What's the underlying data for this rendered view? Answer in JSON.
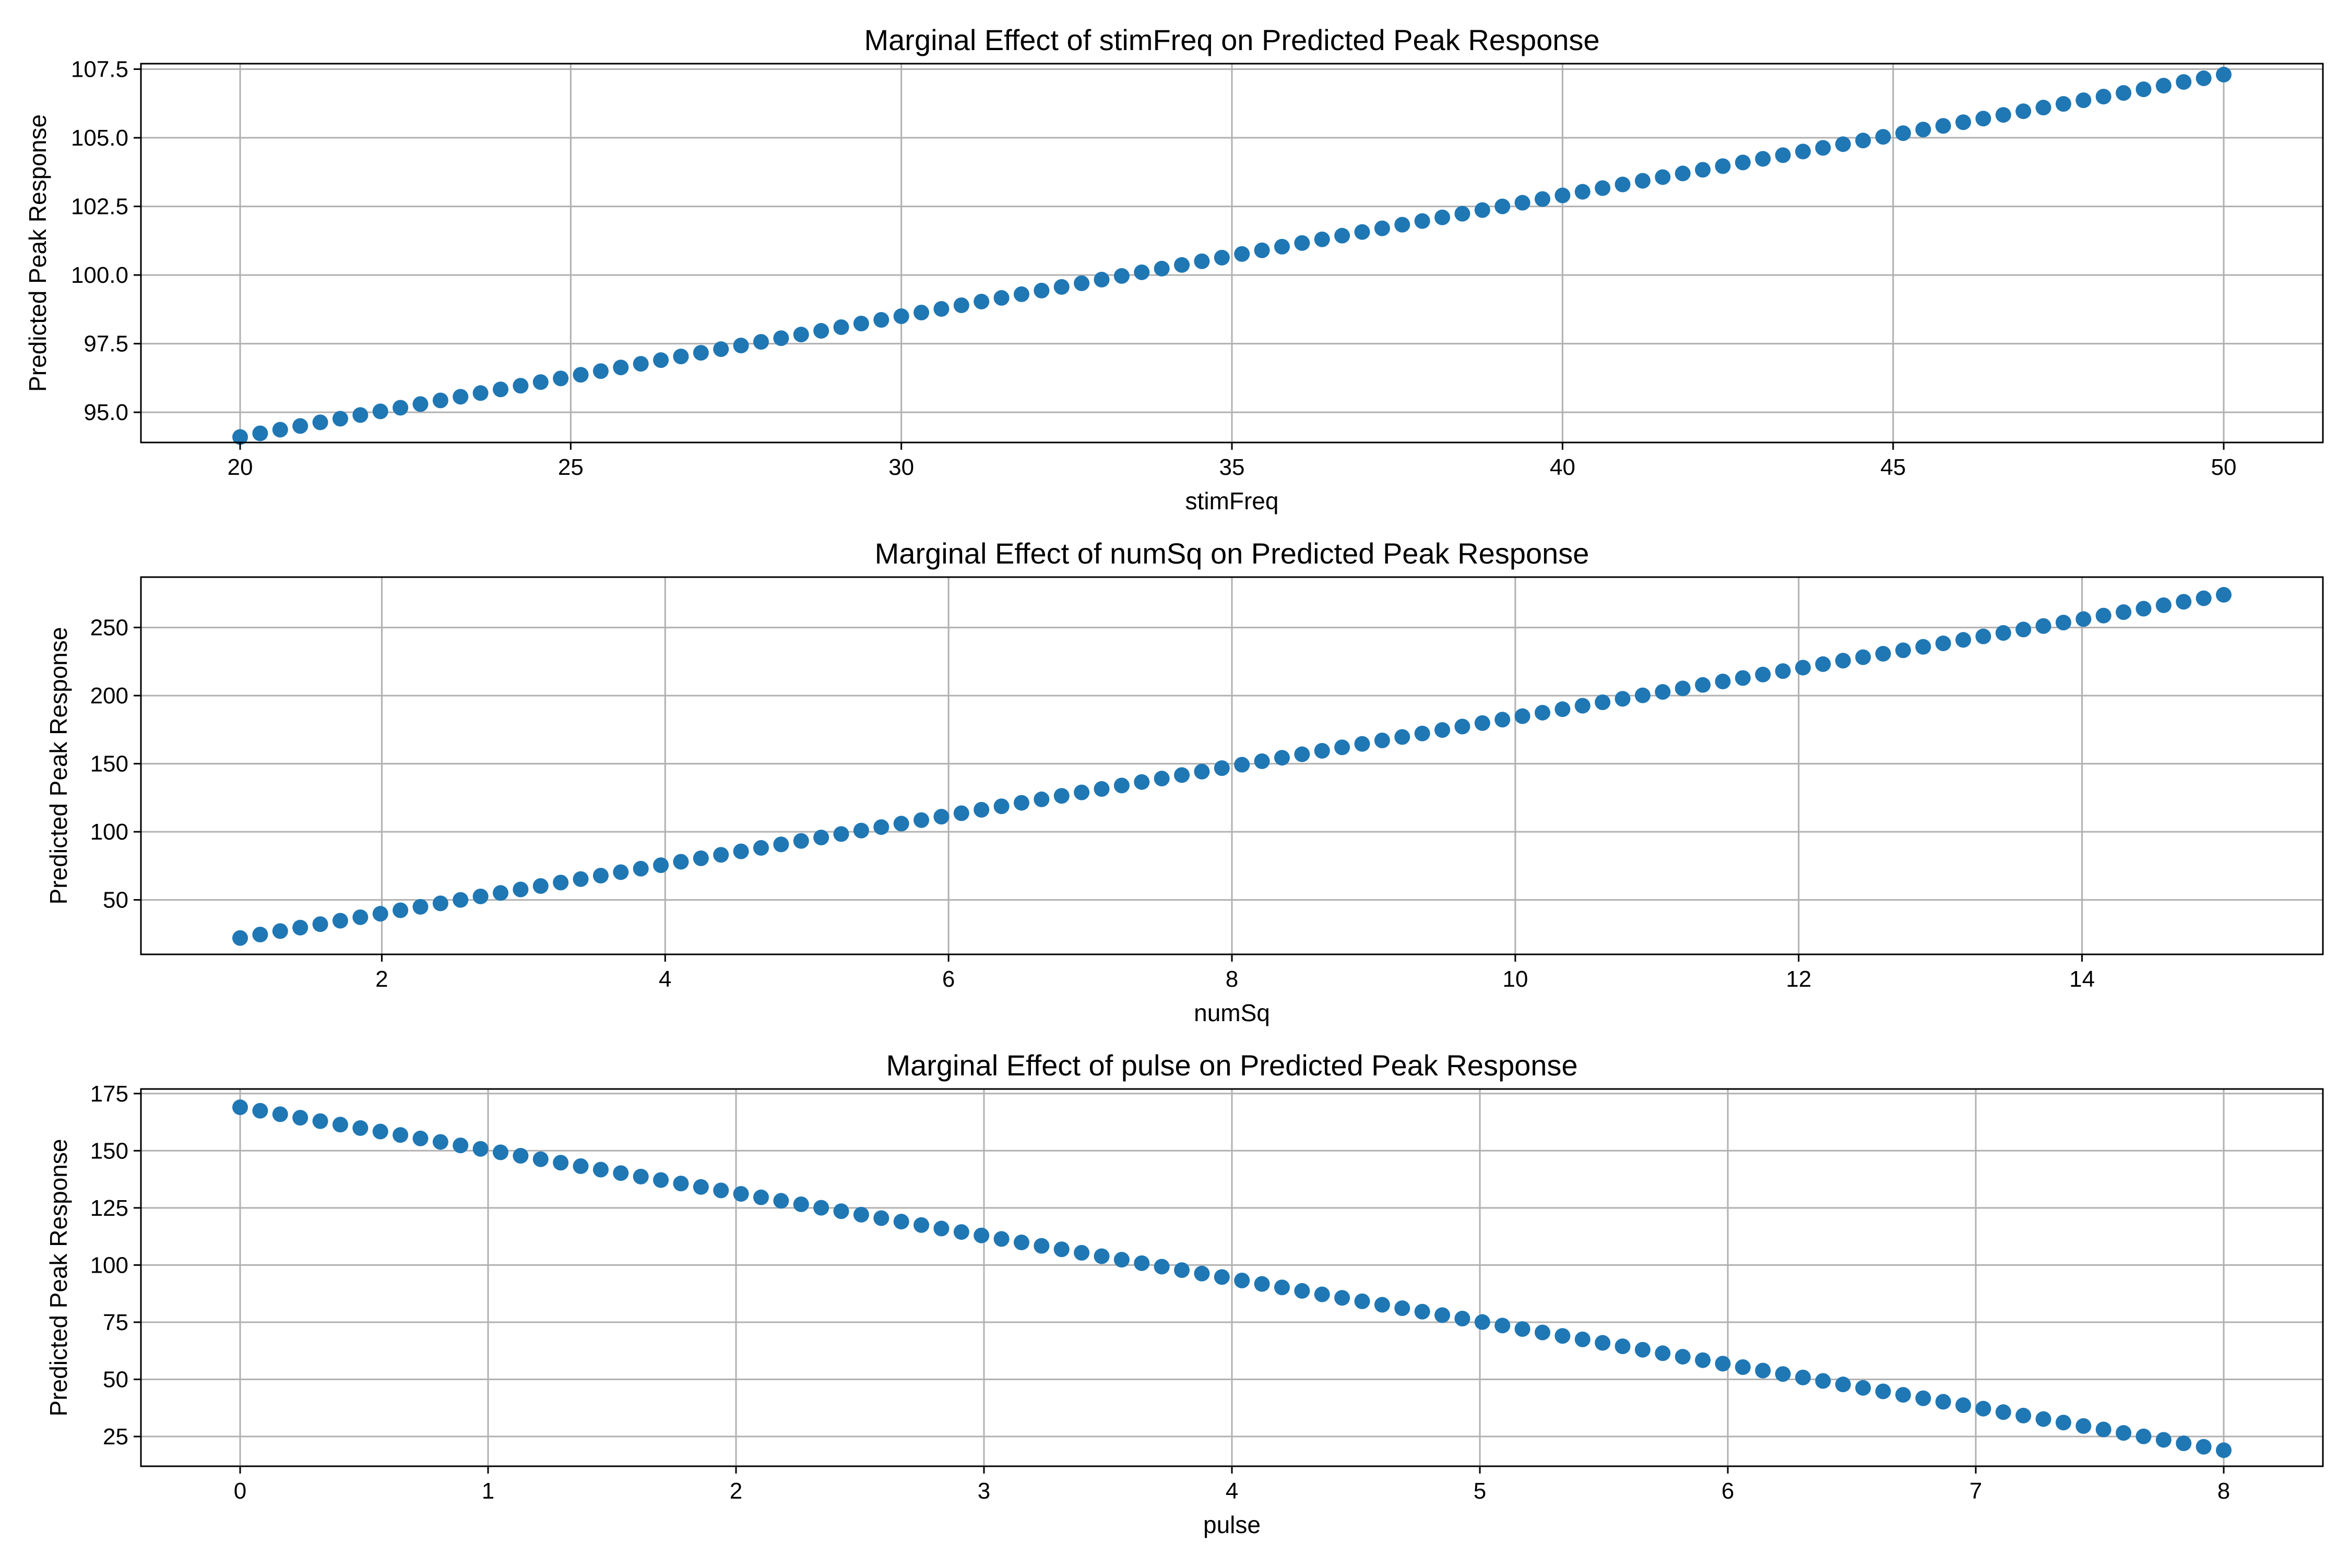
{
  "chart_data": [
    {
      "type": "scatter",
      "title": "Marginal Effect of stimFreq on Predicted Peak Response",
      "xlabel": "stimFreq",
      "ylabel": "Predicted Peak Response",
      "xlim": [
        18.5,
        51.5
      ],
      "ylim": [
        93.9,
        107.7
      ],
      "xticks": [
        20,
        25,
        30,
        35,
        40,
        45,
        50
      ],
      "xtick_labels": [
        "20",
        "25",
        "30",
        "35",
        "40",
        "45",
        "50"
      ],
      "yticks": [
        95.0,
        97.5,
        100.0,
        102.5,
        105.0,
        107.5
      ],
      "ytick_labels": [
        "95.0",
        "97.5",
        "100.0",
        "102.5",
        "105.0",
        "107.5"
      ],
      "grid": true,
      "line": {
        "x_start": 20,
        "x_end": 50,
        "y_start": 94.1,
        "y_end": 107.3,
        "n_points": 100
      },
      "series": [
        {
          "values_from": "line",
          "color": "#1f77b4"
        }
      ]
    },
    {
      "type": "scatter",
      "title": "Marginal Effect of numSq on Predicted Peak Response",
      "xlabel": "numSq",
      "ylabel": "Predicted Peak Response",
      "xlim": [
        0.3,
        15.7
      ],
      "ylim": [
        10,
        287
      ],
      "xticks": [
        2,
        4,
        6,
        8,
        10,
        12,
        14
      ],
      "xtick_labels": [
        "2",
        "4",
        "6",
        "8",
        "10",
        "12",
        "14"
      ],
      "yticks": [
        50,
        100,
        150,
        200,
        250
      ],
      "ytick_labels": [
        "50",
        "100",
        "150",
        "200",
        "250"
      ],
      "grid": true,
      "line": {
        "x_start": 1,
        "x_end": 15,
        "y_start": 22,
        "y_end": 274,
        "n_points": 100
      },
      "series": [
        {
          "values_from": "line",
          "color": "#1f77b4"
        }
      ]
    },
    {
      "type": "scatter",
      "title": "Marginal Effect of pulse on Predicted Peak Response",
      "xlabel": "pulse",
      "ylabel": "Predicted Peak Response",
      "xlim": [
        -0.4,
        8.4
      ],
      "ylim": [
        12,
        177
      ],
      "xticks": [
        0,
        1,
        2,
        3,
        4,
        5,
        6,
        7,
        8
      ],
      "xtick_labels": [
        "0",
        "1",
        "2",
        "3",
        "4",
        "5",
        "6",
        "7",
        "8"
      ],
      "yticks": [
        25,
        50,
        75,
        100,
        125,
        150,
        175
      ],
      "ytick_labels": [
        "25",
        "50",
        "75",
        "100",
        "125",
        "150",
        "175"
      ],
      "grid": true,
      "line": {
        "x_start": 0,
        "x_end": 8,
        "y_start": 169,
        "y_end": 19,
        "n_points": 100
      },
      "series": [
        {
          "values_from": "line",
          "color": "#1f77b4"
        }
      ]
    }
  ],
  "colors": {
    "marker": "#1f77b4",
    "grid": "#b0b0b0",
    "axes": "#000000",
    "background": "#ffffff"
  }
}
